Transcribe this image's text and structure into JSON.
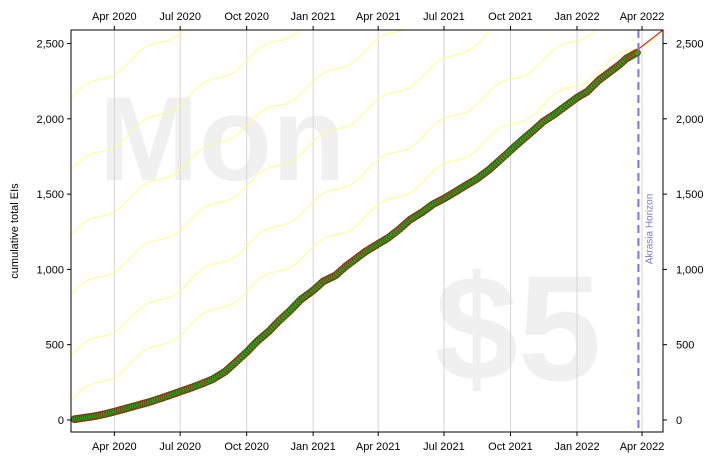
{
  "chart_data": {
    "type": "scatter",
    "ylabel": "cumulative total EIs",
    "xlim": [
      "2020-02-01",
      "2022-04-30"
    ],
    "ylim": [
      -80,
      2590
    ],
    "x_ticks": [
      {
        "date": "2020-04-01",
        "label": "Apr 2020"
      },
      {
        "date": "2020-07-01",
        "label": "Jul 2020"
      },
      {
        "date": "2020-10-01",
        "label": "Oct 2020"
      },
      {
        "date": "2021-01-01",
        "label": "Jan 2021"
      },
      {
        "date": "2021-04-01",
        "label": "Apr 2021"
      },
      {
        "date": "2021-07-01",
        "label": "Jul 2021"
      },
      {
        "date": "2021-10-01",
        "label": "Oct 2021"
      },
      {
        "date": "2022-01-01",
        "label": "Jan 2022"
      },
      {
        "date": "2022-04-01",
        "label": "Apr 2022"
      }
    ],
    "y_ticks": [
      {
        "value": 0,
        "label": "0"
      },
      {
        "value": 500,
        "label": "500"
      },
      {
        "value": 1000,
        "label": "1,000"
      },
      {
        "value": 1500,
        "label": "1,500"
      },
      {
        "value": 2000,
        "label": "2,000"
      },
      {
        "value": 2500,
        "label": "2,500"
      }
    ],
    "grid": {
      "x": true,
      "y": false
    },
    "mirror_axes": true,
    "series": [
      {
        "style": "markers",
        "marker_fill": "#22aa22",
        "marker_edge": "#7a3a10",
        "x": [
          "2020-02-06",
          "2020-02-20",
          "2020-03-05",
          "2020-03-20",
          "2020-04-05",
          "2020-04-20",
          "2020-05-05",
          "2020-05-20",
          "2020-06-05",
          "2020-06-20",
          "2020-07-05",
          "2020-07-20",
          "2020-08-05",
          "2020-08-15",
          "2020-09-01",
          "2020-09-15",
          "2020-10-01",
          "2020-10-15",
          "2020-11-01",
          "2020-11-15",
          "2020-12-01",
          "2020-12-15",
          "2021-01-01",
          "2021-01-15",
          "2021-02-01",
          "2021-02-15",
          "2021-03-01",
          "2021-03-15",
          "2021-04-01",
          "2021-04-15",
          "2021-05-01",
          "2021-05-15",
          "2021-06-01",
          "2021-06-15",
          "2021-07-01",
          "2021-07-15",
          "2021-08-01",
          "2021-08-15",
          "2021-09-01",
          "2021-09-15",
          "2021-10-01",
          "2021-10-15",
          "2021-11-01",
          "2021-11-15",
          "2021-12-01",
          "2021-12-15",
          "2022-01-01",
          "2022-01-15",
          "2022-02-01",
          "2022-02-15",
          "2022-03-01",
          "2022-03-10",
          "2022-03-25"
        ],
        "y": [
          5,
          15,
          25,
          40,
          60,
          80,
          100,
          120,
          145,
          170,
          195,
          220,
          250,
          270,
          320,
          380,
          450,
          520,
          590,
          660,
          730,
          800,
          860,
          920,
          960,
          1020,
          1070,
          1120,
          1170,
          1210,
          1270,
          1330,
          1380,
          1430,
          1470,
          1510,
          1560,
          1600,
          1660,
          1720,
          1790,
          1850,
          1920,
          1980,
          2030,
          2080,
          2140,
          2180,
          2260,
          2310,
          2360,
          2400,
          2440
        ]
      }
    ],
    "trend_line": {
      "color": "#dd2222",
      "x": [
        "2022-03-10",
        "2022-04-30"
      ],
      "y": [
        2400,
        2590
      ]
    },
    "reference_curves": {
      "color": "#ffff88",
      "slope_per_day": 3.0,
      "waviness": 28,
      "start_values_at_xmin": [
        130,
        430,
        830,
        1230,
        1660,
        2140,
        2620,
        3100,
        3580,
        4060
      ]
    },
    "vertical_marker": {
      "date": "2022-03-27",
      "label": "Akrasia Horizon",
      "color": "#7777dd"
    },
    "watermarks": {
      "goal": "Mon",
      "pledge": "$5"
    }
  }
}
